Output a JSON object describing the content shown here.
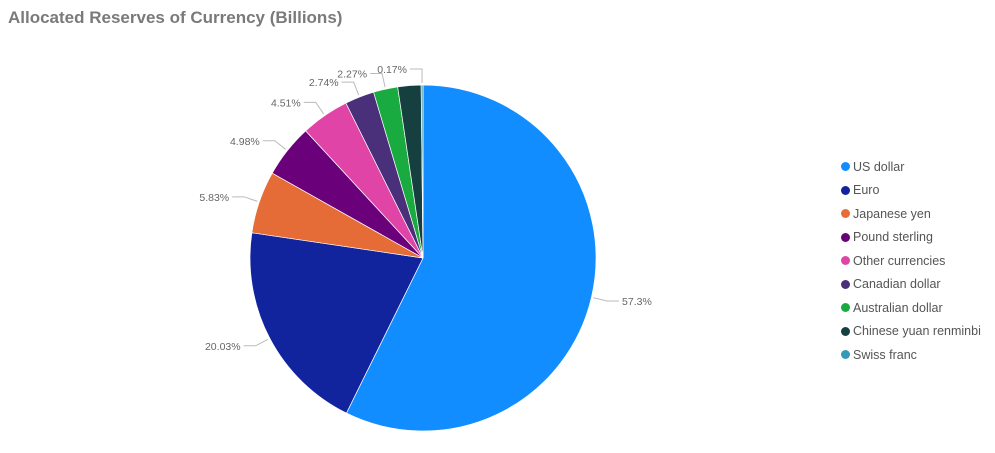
{
  "chart_data": {
    "type": "pie",
    "title": "Allocated Reserves of Currency (Billions)",
    "legend_position": "right",
    "slices": [
      {
        "name": "US dollar",
        "value": 57.3,
        "label": "57.3%",
        "color": "#118DFF"
      },
      {
        "name": "Euro",
        "value": 20.03,
        "label": "20.03%",
        "color": "#12239E"
      },
      {
        "name": "Japanese yen",
        "value": 5.83,
        "label": "5.83%",
        "color": "#E66C37"
      },
      {
        "name": "Pound sterling",
        "value": 4.98,
        "label": "4.98%",
        "color": "#6B007B"
      },
      {
        "name": "Other currencies",
        "value": 4.51,
        "label": "4.51%",
        "color": "#E044A7"
      },
      {
        "name": "Canadian dollar",
        "value": 2.74,
        "label": "2.74%",
        "color": "#4A2F7A"
      },
      {
        "name": "Australian dollar",
        "value": 2.27,
        "label": "2.27%",
        "color": "#1AAB40"
      },
      {
        "name": "Chinese yuan renminbi",
        "value": 2.17,
        "label": "",
        "color": "#15403F"
      },
      {
        "name": "Swiss franc",
        "value": 0.17,
        "label": "0.17%",
        "color": "#3599B8"
      }
    ]
  }
}
